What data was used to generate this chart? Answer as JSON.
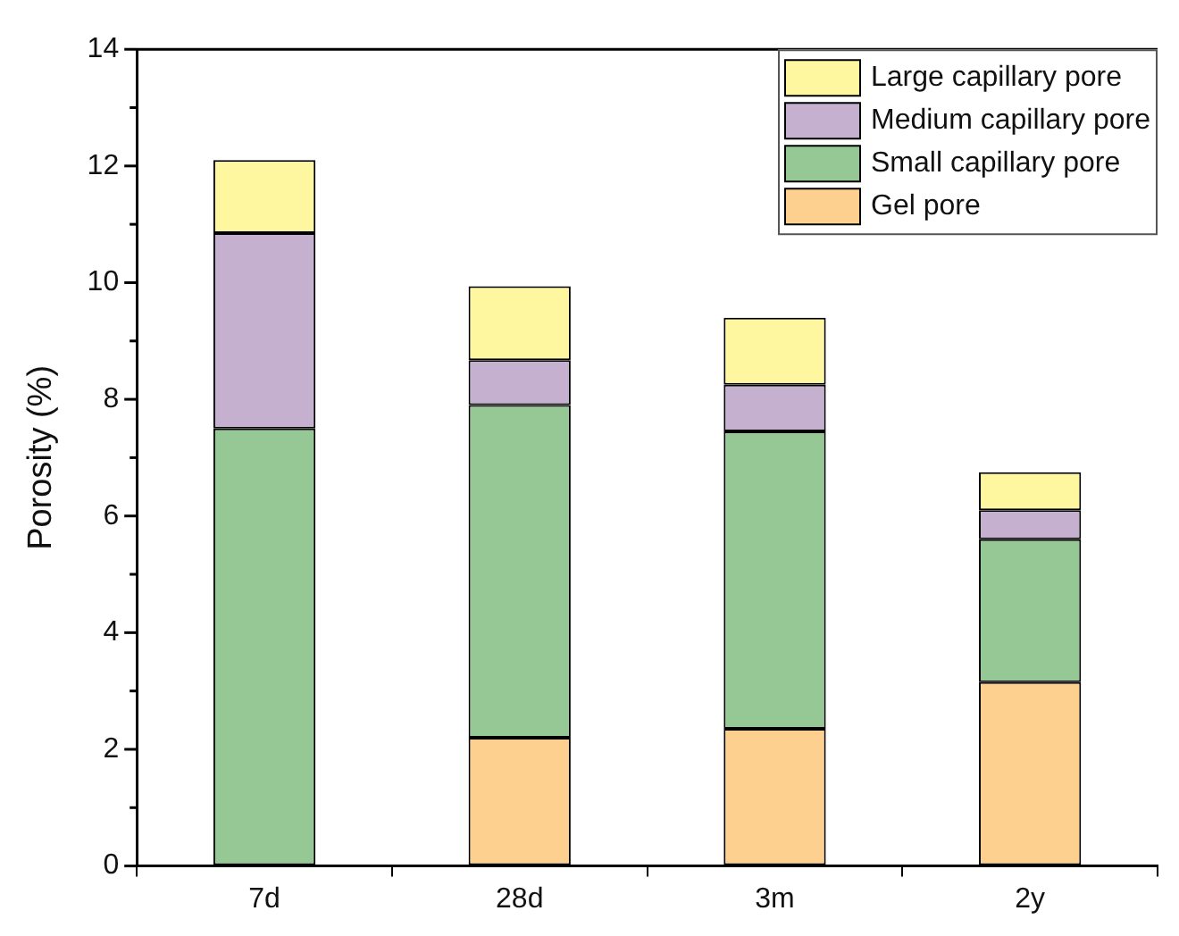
{
  "chart_data": {
    "type": "bar",
    "stacked": true,
    "ylabel": "Porosity (%)",
    "categories": [
      "7d",
      "28d",
      "3m",
      "2y"
    ],
    "series": [
      {
        "name": "Gel pore",
        "color": "#fdd08f",
        "values": [
          0,
          2.2,
          2.35,
          3.15
        ]
      },
      {
        "name": "Small capillary pore",
        "color": "#96c896",
        "values": [
          7.5,
          5.7,
          5.1,
          2.45
        ]
      },
      {
        "name": "Medium capillary pore",
        "color": "#c5b0d0",
        "values": [
          3.35,
          0.77,
          0.8,
          0.5
        ]
      },
      {
        "name": "Large capillary pore",
        "color": "#fff7a0",
        "values": [
          1.25,
          1.27,
          1.15,
          0.65
        ]
      }
    ],
    "ylim": [
      0,
      14
    ],
    "yticks": [
      0,
      {
        "value": 1,
        "label": null
      },
      2,
      {
        "value": 3,
        "label": null
      },
      4,
      {
        "value": 5,
        "label": null
      },
      6,
      {
        "value": 7,
        "label": null
      },
      8,
      {
        "value": 9,
        "label": null
      },
      10,
      {
        "value": 11,
        "label": null
      },
      12,
      {
        "value": 13,
        "label": null
      },
      14
    ],
    "grid": false,
    "legend": "top right"
  }
}
